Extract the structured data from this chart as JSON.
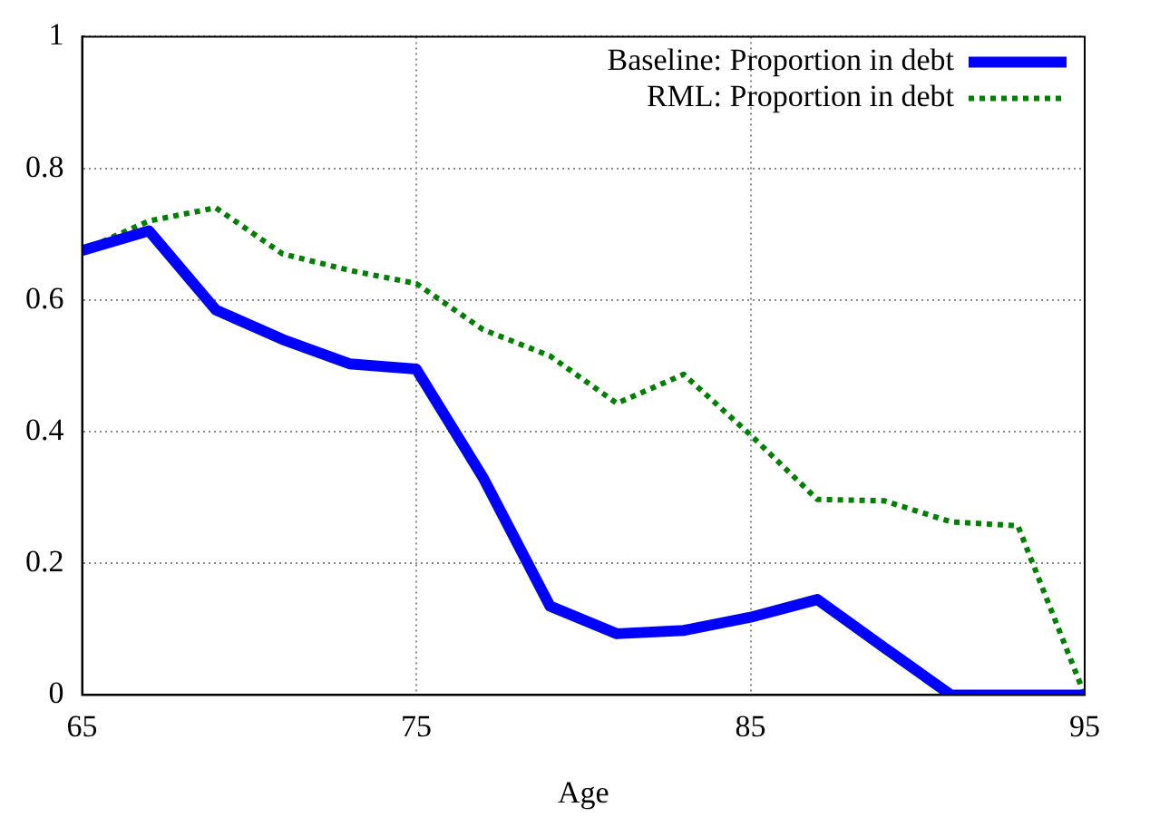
{
  "chart_data": {
    "type": "line",
    "xlabel": "Age",
    "x": [
      65,
      67,
      69,
      71,
      73,
      75,
      77,
      79,
      81,
      83,
      85,
      87,
      89,
      91,
      93,
      95
    ],
    "series": [
      {
        "name": "Baseline: Proportion in debt",
        "color": "#0000ff",
        "line_style": "solid",
        "values": [
          0.675,
          0.705,
          0.585,
          0.54,
          0.503,
          0.495,
          0.33,
          0.135,
          0.093,
          0.098,
          0.118,
          0.145,
          0.072,
          0,
          0,
          0
        ]
      },
      {
        "name": "RML: Proportion in debt",
        "color": "#008000",
        "line_style": "dotted",
        "values": [
          0.675,
          0.72,
          0.74,
          0.67,
          0.645,
          0.625,
          0.555,
          0.515,
          0.443,
          0.487,
          0.395,
          0.297,
          0.295,
          0.263,
          0.257,
          0
        ]
      }
    ],
    "xlim": [
      65,
      95
    ],
    "xticks": [
      65,
      75,
      85,
      95
    ],
    "ylim": [
      0,
      1
    ],
    "yticks": [
      0,
      0.2,
      0.4,
      0.6,
      0.8,
      1
    ],
    "grid": true,
    "legend": "top right",
    "marker": "none"
  }
}
